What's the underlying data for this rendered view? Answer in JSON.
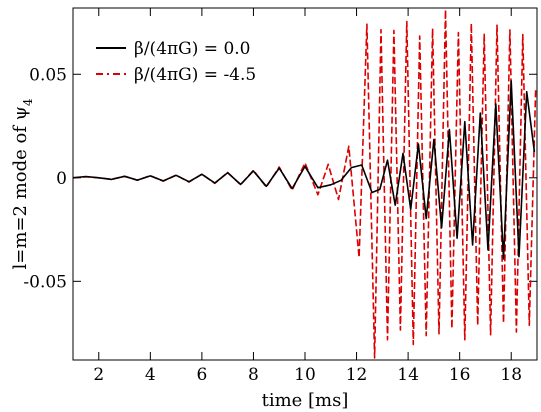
{
  "chart_data": {
    "type": "line",
    "xlabel": "time [ms]",
    "ylabel_main": "l=m=2 mode of ψ",
    "ylabel_sub": "4",
    "xlim": [
      1,
      19
    ],
    "ylim": [
      -0.088,
      0.082
    ],
    "xticks": [
      2,
      4,
      6,
      8,
      10,
      12,
      14,
      16,
      18
    ],
    "xtick_labels": [
      "2",
      "4",
      "6",
      "8",
      "10",
      "12",
      "14",
      "16",
      "18"
    ],
    "yticks": [
      -0.05,
      0,
      0.05
    ],
    "ytick_labels": [
      "-0.05",
      "0",
      "0.05"
    ],
    "grid": false,
    "legend_position": "top-left",
    "series": [
      {
        "name": "β/(4πG) = 0.0",
        "color": "#000000",
        "style": "solid",
        "x": [
          1.0,
          1.5,
          2.0,
          2.5,
          3.0,
          3.5,
          4.0,
          4.5,
          5.0,
          5.5,
          6.0,
          6.5,
          7.0,
          7.5,
          8.0,
          8.5,
          9.0,
          9.5,
          10.0,
          10.5,
          11.0,
          11.4,
          11.8,
          12.2,
          12.6,
          12.9,
          13.2,
          13.5,
          13.8,
          14.1,
          14.4,
          14.7,
          15.0,
          15.3,
          15.6,
          15.9,
          16.2,
          16.5,
          16.8,
          17.1,
          17.4,
          17.7,
          18.0,
          18.3,
          18.6,
          18.9
        ],
        "y": [
          0.0,
          0.0006,
          0.0,
          -0.0008,
          0.0007,
          -0.0011,
          0.0009,
          -0.0015,
          0.0012,
          -0.0019,
          0.0017,
          -0.0025,
          0.0024,
          -0.0032,
          0.0033,
          -0.0041,
          0.0047,
          -0.0052,
          0.0055,
          -0.0048,
          -0.0034,
          -0.0012,
          0.0049,
          0.0062,
          -0.0071,
          -0.0056,
          0.0085,
          -0.0132,
          0.0118,
          -0.0152,
          0.0163,
          -0.0197,
          0.0185,
          -0.0241,
          0.0233,
          -0.0292,
          0.0271,
          -0.0324,
          0.0313,
          -0.0348,
          0.0357,
          -0.0392,
          0.0468,
          -0.0381,
          0.0416,
          0.0125
        ]
      },
      {
        "name": "β/(4πG) = -4.5",
        "color": "#dd0000",
        "style": "dashed",
        "x": [
          1.0,
          1.5,
          2.0,
          2.5,
          3.0,
          3.5,
          4.0,
          4.5,
          5.0,
          5.5,
          6.0,
          6.5,
          7.0,
          7.5,
          8.0,
          8.5,
          9.0,
          9.5,
          10.0,
          10.5,
          10.9,
          11.3,
          11.7,
          12.1,
          12.4,
          12.7,
          12.95,
          13.2,
          13.45,
          13.7,
          13.95,
          14.2,
          14.45,
          14.7,
          14.95,
          15.2,
          15.45,
          15.7,
          15.95,
          16.2,
          16.45,
          16.7,
          16.95,
          17.2,
          17.45,
          17.7,
          17.95,
          18.2,
          18.45,
          18.7,
          18.95
        ],
        "y": [
          0.0,
          0.0005,
          0.0,
          -0.0007,
          0.0007,
          -0.0012,
          0.001,
          -0.0016,
          0.0013,
          -0.0021,
          0.0018,
          -0.0027,
          0.0026,
          -0.0034,
          0.0036,
          -0.0045,
          0.0052,
          -0.006,
          0.0072,
          -0.0082,
          0.0065,
          -0.0105,
          0.0152,
          -0.0385,
          0.0742,
          -0.087,
          0.0715,
          -0.0782,
          0.0712,
          -0.0735,
          0.0755,
          -0.0805,
          0.0685,
          -0.0762,
          0.0721,
          -0.0753,
          0.0812,
          -0.0728,
          0.0701,
          -0.0782,
          0.0745,
          -0.0712,
          0.0693,
          -0.0758,
          0.0737,
          -0.0702,
          0.0714,
          -0.0745,
          0.0692,
          -0.0712,
          0.0435
        ]
      }
    ]
  }
}
